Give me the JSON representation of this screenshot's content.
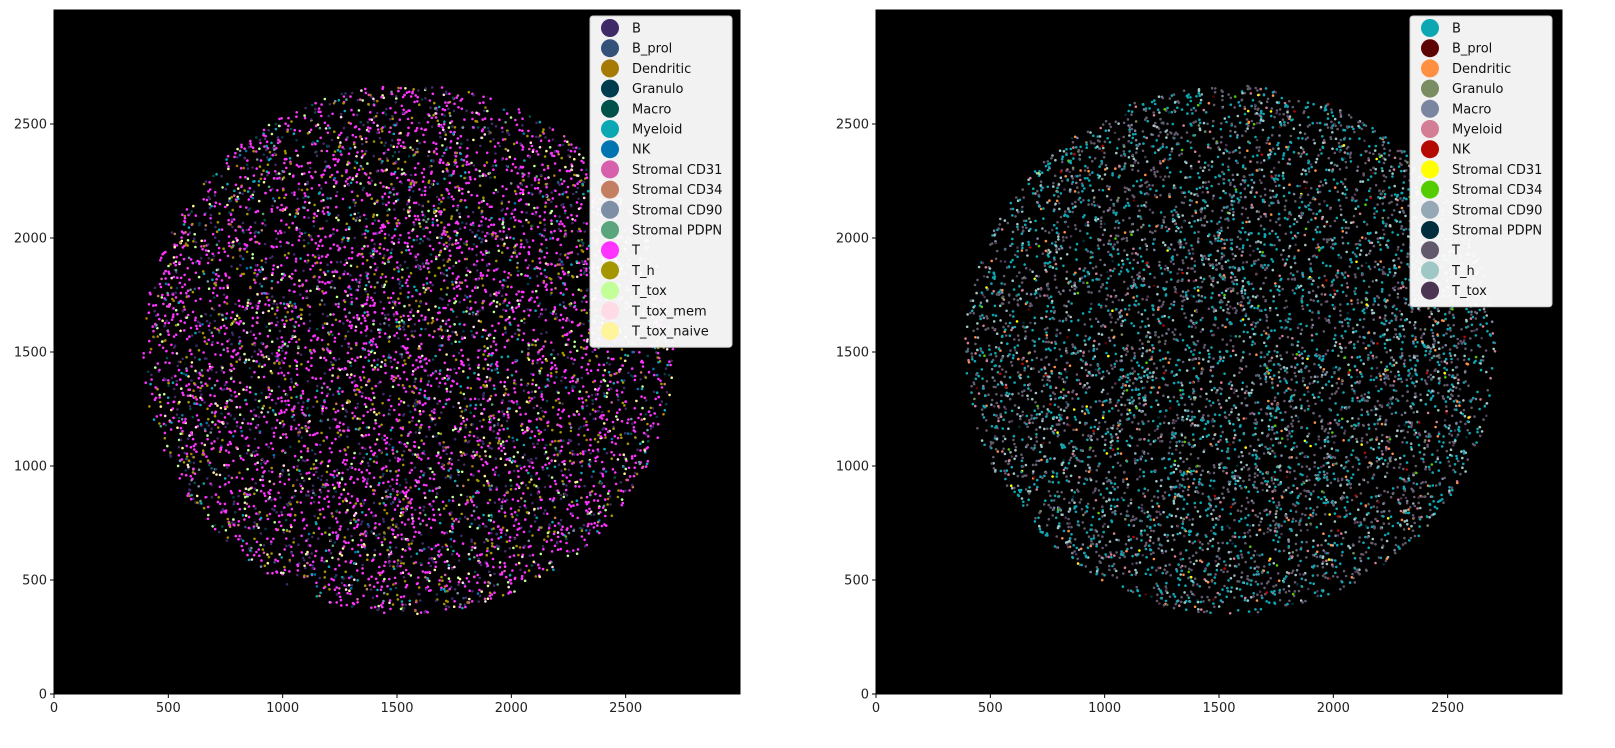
{
  "chart_data": [
    {
      "type": "scatter",
      "background": "#000000",
      "xlim": [
        0,
        3000
      ],
      "ylim": [
        0,
        3000
      ],
      "xticks": [
        0,
        500,
        1000,
        1500,
        2000,
        2500
      ],
      "yticks": [
        0,
        500,
        1000,
        1500,
        2000,
        2500
      ],
      "tissue_region": {
        "shape": "circle",
        "center": [
          1550,
          1510
        ],
        "radius": 1160
      },
      "legend": {
        "placement": "top-right",
        "entries": [
          {
            "name": "B",
            "color": "#3f2a67",
            "share": 0.16
          },
          {
            "name": "B_prol",
            "color": "#34517a",
            "share": 0.005
          },
          {
            "name": "Dendritic",
            "color": "#a57a05",
            "share": 0.02
          },
          {
            "name": "Granulo",
            "color": "#003c4f",
            "share": 0.02
          },
          {
            "name": "Macro",
            "color": "#00514a",
            "share": 0.02
          },
          {
            "name": "Myeloid",
            "color": "#0ba8b4",
            "share": 0.05
          },
          {
            "name": "NK",
            "color": "#0074b1",
            "share": 0.01
          },
          {
            "name": "Stromal CD31",
            "color": "#d660ab",
            "share": 0.01
          },
          {
            "name": "Stromal CD34",
            "color": "#c47f63",
            "share": 0.01
          },
          {
            "name": "Stromal CD90",
            "color": "#7d8fa5",
            "share": 0.02
          },
          {
            "name": "Stromal PDPN",
            "color": "#5aa57b",
            "share": 0.01
          },
          {
            "name": "T",
            "color": "#ff33ff",
            "share": 0.45
          },
          {
            "name": "T_h",
            "color": "#a39600",
            "share": 0.1
          },
          {
            "name": "T_tox",
            "color": "#c2ff99",
            "share": 0.05
          },
          {
            "name": "T_tox_mem",
            "color": "#ffdbe5",
            "share": 0.03
          },
          {
            "name": "T_tox_naive",
            "color": "#fef49c",
            "share": 0.03
          }
        ]
      }
    },
    {
      "type": "scatter",
      "background": "#000000",
      "xlim": [
        0,
        3000
      ],
      "ylim": [
        0,
        3000
      ],
      "xticks": [
        0,
        500,
        1000,
        1500,
        2000,
        2500
      ],
      "yticks": [
        0,
        500,
        1000,
        1500,
        2000,
        2500
      ],
      "tissue_region": {
        "shape": "circle",
        "center": [
          1550,
          1510
        ],
        "radius": 1160
      },
      "legend": {
        "placement": "top-right",
        "entries": [
          {
            "name": "B",
            "color": "#0ba8b4",
            "share": 0.3
          },
          {
            "name": "B_prol",
            "color": "#5e0303",
            "share": 0.005
          },
          {
            "name": "Dendritic",
            "color": "#ff9042",
            "share": 0.03
          },
          {
            "name": "Granulo",
            "color": "#7a8c61",
            "share": 0.01
          },
          {
            "name": "Macro",
            "color": "#7a86a0",
            "share": 0.05
          },
          {
            "name": "Myeloid",
            "color": "#d37e95",
            "share": 0.04
          },
          {
            "name": "NK",
            "color": "#b50a00",
            "share": 0.005
          },
          {
            "name": "Stromal CD31",
            "color": "#ffff00",
            "share": 0.005
          },
          {
            "name": "Stromal CD34",
            "color": "#55cc00",
            "share": 0.01
          },
          {
            "name": "Stromal CD90",
            "color": "#94a9b5",
            "share": 0.02
          },
          {
            "name": "Stromal PDPN",
            "color": "#002e3d",
            "share": 0.01
          },
          {
            "name": "T",
            "color": "#62596d",
            "share": 0.35
          },
          {
            "name": "T_h",
            "color": "#9ec7c5",
            "share": 0.12
          },
          {
            "name": "T_tox",
            "color": "#4b3553",
            "share": 0.04
          }
        ]
      }
    }
  ]
}
